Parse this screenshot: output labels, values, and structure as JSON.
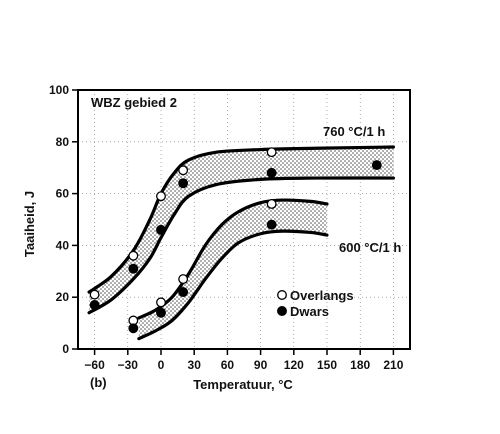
{
  "chart_data": {
    "type": "scatter",
    "panel_label": "(b)",
    "zone_label": "WBZ gebied 2",
    "xlabel": "Temperatuur, °C",
    "ylabel": "Taaiheid, J",
    "xlim": [
      -75,
      225
    ],
    "ylim": [
      0,
      100
    ],
    "xticks": [
      -60,
      -30,
      0,
      30,
      60,
      90,
      120,
      150,
      180,
      210
    ],
    "yticks": [
      0,
      20,
      40,
      60,
      80,
      100
    ],
    "legend": [
      {
        "name": "Overlangs",
        "marker": "open-circle"
      },
      {
        "name": "Dwars",
        "marker": "filled-circle"
      }
    ],
    "bands": [
      {
        "name": "760 °C/1 h",
        "upper": [
          [
            -65,
            22
          ],
          [
            -45,
            28
          ],
          [
            -25,
            38
          ],
          [
            -10,
            50
          ],
          [
            0,
            60
          ],
          [
            12,
            68
          ],
          [
            25,
            73
          ],
          [
            50,
            76
          ],
          [
            90,
            77
          ],
          [
            140,
            77.5
          ],
          [
            210,
            78
          ]
        ],
        "lower": [
          [
            -65,
            14
          ],
          [
            -45,
            19
          ],
          [
            -25,
            27
          ],
          [
            -10,
            35
          ],
          [
            0,
            43
          ],
          [
            12,
            52
          ],
          [
            25,
            59
          ],
          [
            50,
            63.5
          ],
          [
            90,
            65.5
          ],
          [
            140,
            66
          ],
          [
            210,
            66
          ]
        ]
      },
      {
        "name": "600 °C/1 h",
        "upper": [
          [
            -20,
            12
          ],
          [
            -5,
            15
          ],
          [
            10,
            20
          ],
          [
            25,
            29
          ],
          [
            40,
            40
          ],
          [
            55,
            48
          ],
          [
            70,
            53
          ],
          [
            90,
            56.5
          ],
          [
            110,
            57.5
          ],
          [
            135,
            57
          ],
          [
            150,
            56
          ]
        ],
        "lower": [
          [
            -20,
            4
          ],
          [
            -5,
            7
          ],
          [
            10,
            11
          ],
          [
            25,
            18
          ],
          [
            40,
            27
          ],
          [
            55,
            35
          ],
          [
            70,
            41
          ],
          [
            90,
            44.5
          ],
          [
            110,
            45.5
          ],
          [
            135,
            45
          ],
          [
            150,
            44
          ]
        ]
      }
    ],
    "series": [
      {
        "name": "Overlangs",
        "points": [
          [
            -60,
            21
          ],
          [
            -25,
            36
          ],
          [
            0,
            59
          ],
          [
            20,
            69
          ],
          [
            100,
            76
          ],
          [
            -25,
            11
          ],
          [
            0,
            18
          ],
          [
            20,
            27
          ],
          [
            100,
            56
          ]
        ]
      },
      {
        "name": "Dwars",
        "points": [
          [
            -60,
            17
          ],
          [
            -25,
            31
          ],
          [
            0,
            46
          ],
          [
            20,
            64
          ],
          [
            100,
            68
          ],
          [
            195,
            71
          ],
          [
            -25,
            8
          ],
          [
            0,
            14
          ],
          [
            20,
            22
          ],
          [
            100,
            48
          ]
        ]
      }
    ]
  }
}
